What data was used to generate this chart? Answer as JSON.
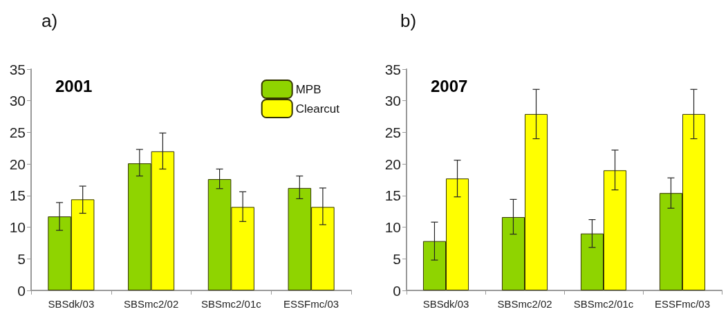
{
  "chart_data": [
    {
      "type": "bar",
      "title": "a)",
      "annotations": [
        "2001"
      ],
      "categories": [
        "SBSdk/03",
        "SBSmc2/02",
        "SBSmc2/01c",
        "ESSFmc/03"
      ],
      "series": [
        {
          "name": "MPB",
          "color": "#8fd400",
          "values": [
            11.7,
            20.1,
            17.6,
            16.2
          ],
          "errors": [
            [
              9.5,
              13.9
            ],
            [
              18.1,
              22.3
            ],
            [
              16.1,
              19.2
            ],
            [
              14.5,
              18.1
            ]
          ]
        },
        {
          "name": "Clearcut",
          "color": "#ffff00",
          "values": [
            14.4,
            22.0,
            13.2,
            13.2
          ],
          "errors": [
            [
              12.2,
              16.5
            ],
            [
              19.2,
              24.9
            ],
            [
              10.9,
              15.6
            ],
            [
              10.4,
              16.2
            ]
          ]
        }
      ],
      "ylim": [
        0,
        35
      ],
      "yticks": [
        0,
        5,
        10,
        15,
        20,
        25,
        30,
        35
      ],
      "grid": false,
      "legend": "top right"
    },
    {
      "type": "bar",
      "title": "b)",
      "annotations": [
        "2007"
      ],
      "categories": [
        "SBSdk/03",
        "SBSmc2/02",
        "SBSmc2/01c",
        "ESSFmc/03"
      ],
      "series": [
        {
          "color": "#8fd400",
          "values": [
            7.8,
            11.6,
            9.0,
            15.4
          ],
          "errors": [
            [
              4.8,
              10.8
            ],
            [
              8.9,
              14.4
            ],
            [
              6.8,
              11.2
            ],
            [
              13.0,
              17.8
            ]
          ]
        },
        {
          "color": "#ffff00",
          "values": [
            17.7,
            27.9,
            19.0,
            27.9
          ],
          "errors": [
            [
              14.8,
              20.6
            ],
            [
              24.0,
              31.8
            ],
            [
              15.9,
              22.2
            ],
            [
              24.0,
              31.8
            ]
          ]
        }
      ],
      "ylim": [
        0,
        35
      ],
      "yticks": [
        0,
        5,
        10,
        15,
        20,
        25,
        30,
        35
      ],
      "grid": false,
      "legend": false
    }
  ]
}
